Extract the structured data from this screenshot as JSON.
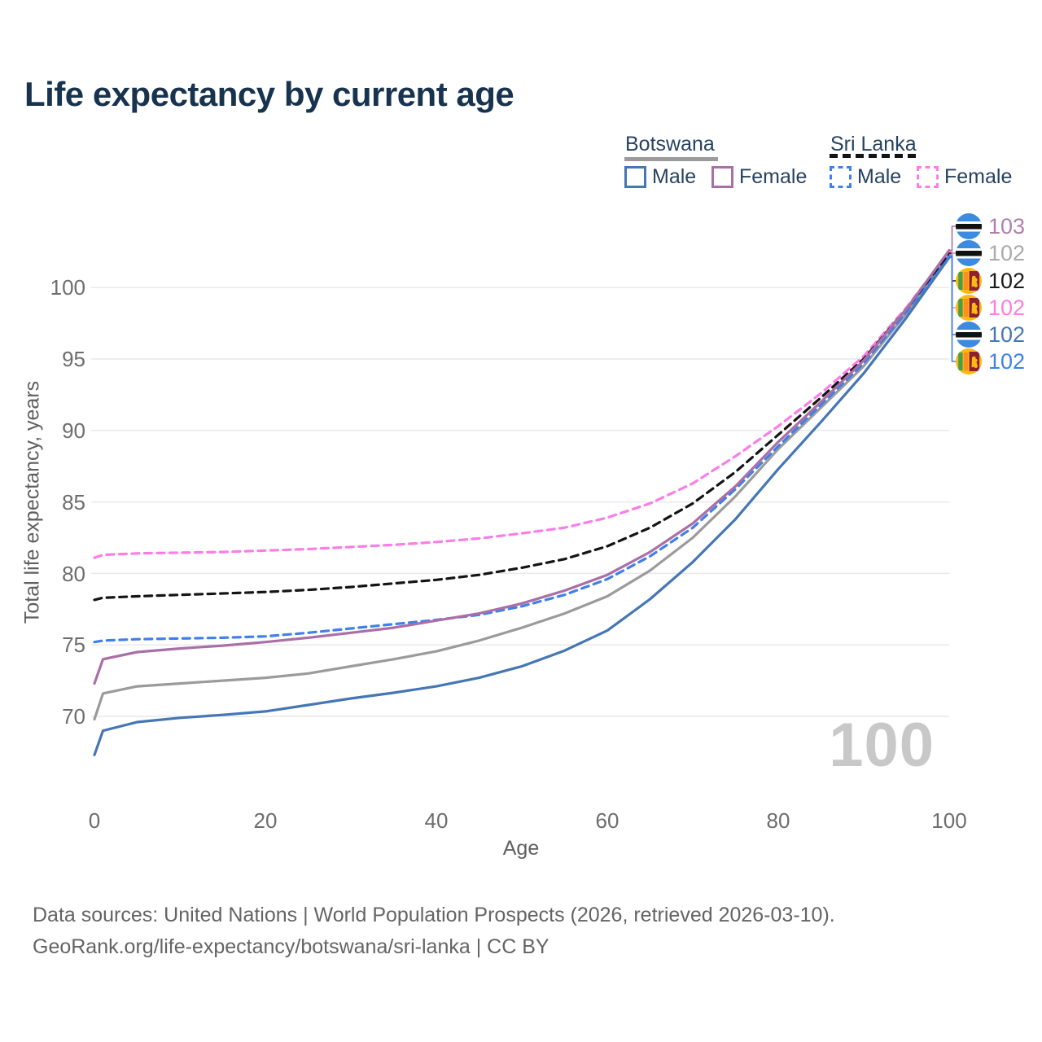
{
  "header": {
    "title": "Life expectancy by current age"
  },
  "legend": {
    "groups": [
      {
        "country": "Botswana",
        "items": [
          {
            "label": "Male"
          },
          {
            "label": "Female"
          }
        ]
      },
      {
        "country": "Sri Lanka",
        "items": [
          {
            "label": "Male"
          },
          {
            "label": "Female"
          }
        ]
      }
    ]
  },
  "axes": {
    "y_label": "Total life expectancy, years",
    "x_label": "Age",
    "y_ticks": [
      "100",
      "95",
      "90",
      "85",
      "80",
      "75",
      "70"
    ],
    "x_ticks": [
      "0",
      "20",
      "40",
      "60",
      "80",
      "100"
    ]
  },
  "end_labels": [
    {
      "value": "103",
      "flag": "botswana",
      "color": "#b07fae"
    },
    {
      "value": "102",
      "flag": "botswana",
      "color": "#ababab"
    },
    {
      "value": "102",
      "flag": "sri-lanka",
      "color": "#1a1a1a"
    },
    {
      "value": "102",
      "flag": "sri-lanka",
      "color": "#fb7de6"
    },
    {
      "value": "102",
      "flag": "botswana",
      "color": "#4576b5"
    },
    {
      "value": "102",
      "flag": "sri-lanka",
      "color": "#3f80ea"
    }
  ],
  "watermark": {
    "value": "100"
  },
  "footer": {
    "line1": "Data sources: United Nations | World Population Prospects (2026, retrieved 2026-03-10).",
    "line2": "GeoRank.org/life-expectancy/botswana/sri-lanka | CC BY"
  },
  "chart_data": {
    "type": "line",
    "title": "Life expectancy by current age",
    "xlabel": "Age",
    "ylabel": "Total life expectancy, years",
    "xlim": [
      0,
      100
    ],
    "ylim": [
      66,
      104
    ],
    "y_ticks": [
      70,
      75,
      80,
      85,
      90,
      95,
      100
    ],
    "x_ticks": [
      0,
      20,
      40,
      60,
      80,
      100
    ],
    "grid": "horizontal",
    "legend_position": "top-right",
    "ages": [
      0,
      1,
      5,
      10,
      15,
      20,
      25,
      30,
      35,
      40,
      45,
      50,
      55,
      60,
      65,
      70,
      75,
      80,
      85,
      90,
      95,
      100
    ],
    "series": [
      {
        "name": "Botswana Male",
        "style": "solid",
        "color": "#4576b5",
        "values": [
          67.3,
          69.0,
          69.6,
          69.9,
          70.1,
          70.35,
          70.8,
          71.25,
          71.65,
          72.1,
          72.7,
          73.5,
          74.6,
          76.0,
          78.2,
          80.8,
          83.8,
          87.3,
          90.6,
          94.0,
          97.9,
          102.1
        ]
      },
      {
        "name": "Botswana Female",
        "style": "solid",
        "color": "#a96fa6",
        "values": [
          72.3,
          74.0,
          74.5,
          74.75,
          74.95,
          75.2,
          75.5,
          75.85,
          76.2,
          76.7,
          77.2,
          77.9,
          78.8,
          79.9,
          81.5,
          83.5,
          86.1,
          89.2,
          92.0,
          94.9,
          98.5,
          102.6
        ]
      },
      {
        "name": "Botswana Both sexes",
        "style": "solid",
        "color": "#9b9b9b",
        "values": [
          69.8,
          71.6,
          72.1,
          72.3,
          72.5,
          72.7,
          73.0,
          73.5,
          74.0,
          74.55,
          75.3,
          76.2,
          77.2,
          78.4,
          80.2,
          82.5,
          85.4,
          88.7,
          91.6,
          94.5,
          98.2,
          102.3
        ]
      },
      {
        "name": "Sri Lanka Male",
        "style": "dashed",
        "color": "#3f80ea",
        "values": [
          75.2,
          75.3,
          75.4,
          75.45,
          75.5,
          75.6,
          75.85,
          76.15,
          76.45,
          76.75,
          77.1,
          77.7,
          78.5,
          79.6,
          81.2,
          83.2,
          85.9,
          88.9,
          91.8,
          94.7,
          98.3,
          102.2
        ]
      },
      {
        "name": "Sri Lanka Female",
        "style": "dashed",
        "color": "#fb7de6",
        "values": [
          81.1,
          81.3,
          81.4,
          81.45,
          81.5,
          81.6,
          81.7,
          81.85,
          82.0,
          82.2,
          82.45,
          82.8,
          83.2,
          83.9,
          84.9,
          86.3,
          88.2,
          90.3,
          92.6,
          95.2,
          98.6,
          102.5
        ]
      },
      {
        "name": "Sri Lanka Both sexes",
        "style": "dashed",
        "color": "#141414",
        "values": [
          78.15,
          78.3,
          78.4,
          78.5,
          78.6,
          78.7,
          78.85,
          79.05,
          79.3,
          79.55,
          79.9,
          80.4,
          81.0,
          81.9,
          83.2,
          84.9,
          87.1,
          89.7,
          92.3,
          95.0,
          98.5,
          102.4
        ]
      }
    ]
  }
}
